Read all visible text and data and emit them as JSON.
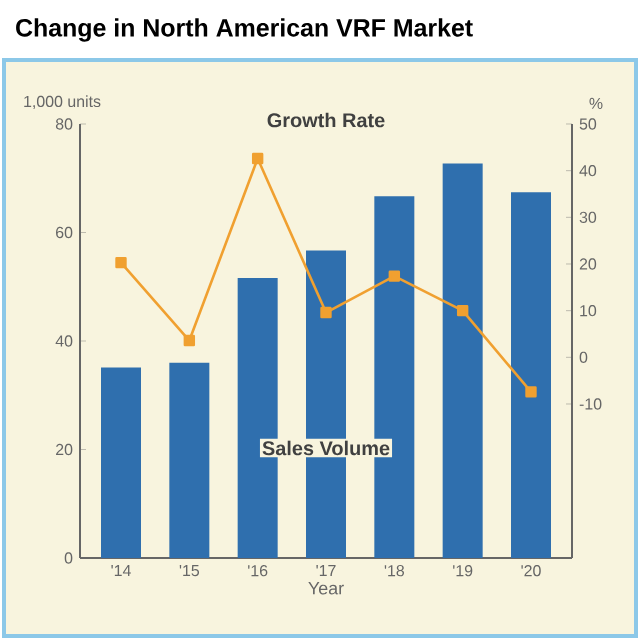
{
  "chart_data": {
    "type": "bar",
    "title": "Change in North American VRF Market",
    "xlabel": "Year",
    "ylabel": "1,000 units",
    "y2label": "%",
    "categories": [
      "'14",
      "'15",
      "'16",
      "'17",
      "'18",
      "'19",
      "'20"
    ],
    "series": [
      {
        "name": "Sales Volume",
        "color": "#2f6fae",
        "values": [
          35.1,
          36,
          51.6,
          56.7,
          66.7,
          72.7,
          67.4
        ]
      },
      {
        "name": "Growth Rate",
        "type": "line",
        "axis": "y2",
        "color": "#f0a030",
        "marker": "square",
        "values": [
          20.3,
          3.6,
          42.6,
          9.6,
          17.4,
          10,
          -7.4
        ]
      }
    ],
    "ylim": [
      0,
      80
    ],
    "yticks": [
      0,
      20,
      40,
      60,
      80
    ],
    "y2lim": [
      -43,
      50
    ],
    "y2ticks": [
      -10,
      0,
      10,
      20,
      30,
      40,
      50
    ],
    "grid": false,
    "legend": false
  }
}
